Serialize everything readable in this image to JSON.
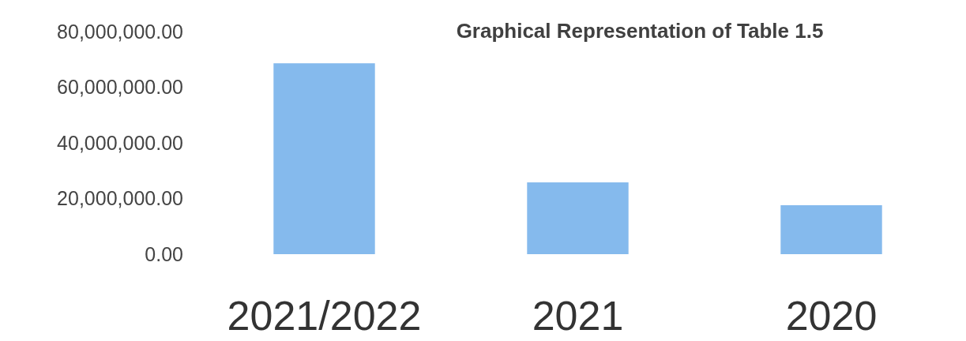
{
  "chart_data": {
    "type": "bar",
    "title": "Graphical Representation of Table 1.5",
    "categories": [
      "2021/2022",
      "2021",
      "2020"
    ],
    "values": [
      68600000,
      25800000,
      17600000
    ],
    "color": "#85baed",
    "ylim": [
      0,
      80000000
    ],
    "yticks": [
      {
        "value": 0,
        "label": "0.00"
      },
      {
        "value": 20000000,
        "label": "20,000,000.00"
      },
      {
        "value": 40000000,
        "label": "40,000,000.00"
      },
      {
        "value": 60000000,
        "label": "60,000,000.00"
      },
      {
        "value": 80000000,
        "label": "80,000,000.00"
      }
    ],
    "grid": false
  }
}
